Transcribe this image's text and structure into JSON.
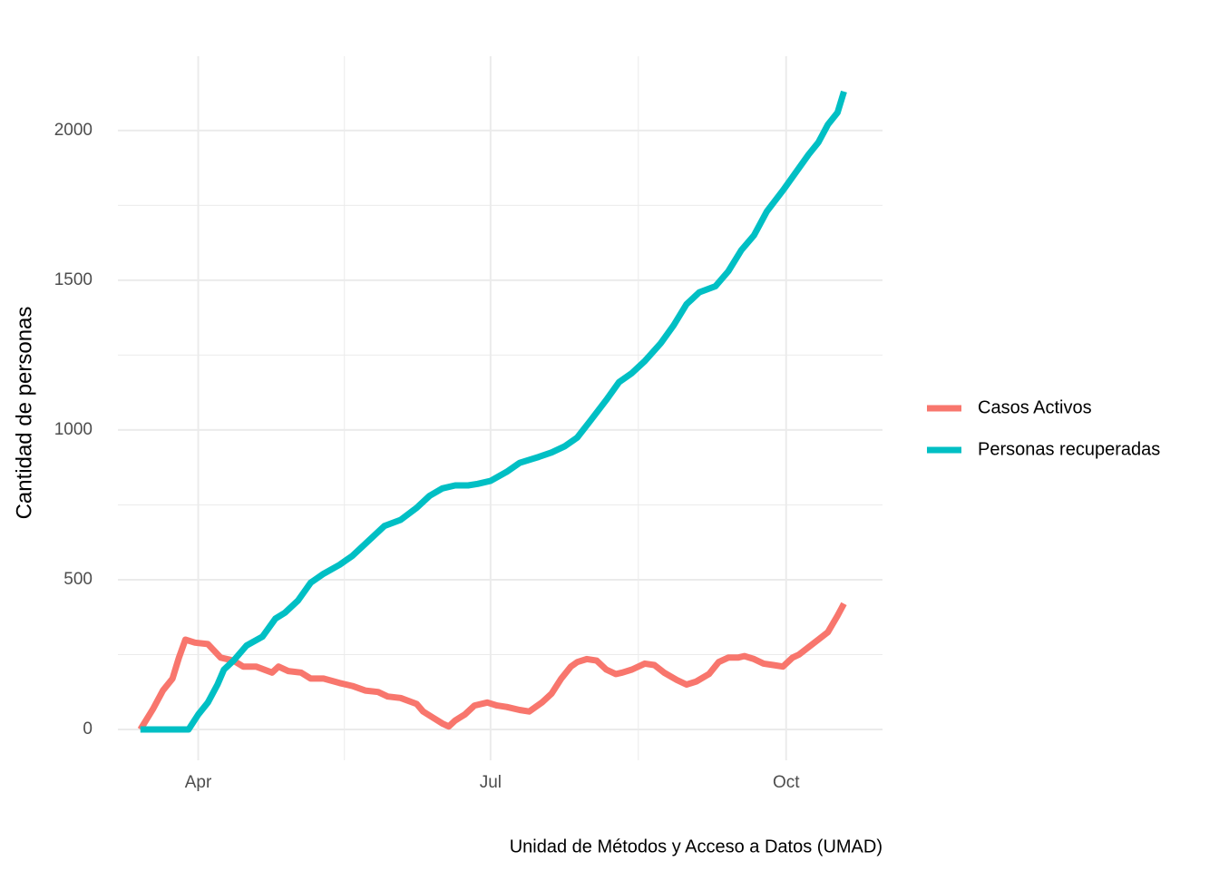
{
  "chart_data": {
    "type": "line",
    "y_label": "Cantidad de personas",
    "caption": "Unidad de Métodos y Acceso a Datos (UMAD)",
    "grid": true,
    "legend": "right",
    "xlim": [
      67,
      305
    ],
    "xticks": [
      {
        "value": 92,
        "label": "Apr"
      },
      {
        "value": 183,
        "label": "Jul"
      },
      {
        "value": 275,
        "label": "Oct"
      }
    ],
    "ylim": [
      -103,
      2248
    ],
    "yticks": [
      0,
      500,
      1000,
      1500,
      2000
    ],
    "series": [
      {
        "name": "Casos Activos",
        "color": "#f8766d",
        "x": [
          74,
          78,
          81,
          84,
          86,
          88,
          91,
          95,
          99,
          103,
          106,
          110,
          115,
          117,
          120,
          124,
          127,
          131,
          136,
          140,
          144,
          148,
          151,
          155,
          160,
          162,
          165,
          168,
          170,
          172,
          175,
          178,
          182,
          185,
          188,
          192,
          195,
          199,
          202,
          205,
          208,
          210,
          213,
          216,
          219,
          222,
          224,
          227,
          231,
          234,
          237,
          241,
          244,
          247,
          251,
          254,
          257,
          260,
          262,
          265,
          268,
          271,
          274,
          277,
          279,
          282,
          285,
          288,
          291,
          293
        ],
        "values": [
          0,
          70,
          130,
          170,
          240,
          300,
          290,
          285,
          240,
          230,
          210,
          210,
          190,
          210,
          195,
          190,
          170,
          170,
          155,
          145,
          130,
          125,
          110,
          105,
          85,
          60,
          40,
          20,
          10,
          30,
          50,
          80,
          90,
          80,
          75,
          65,
          60,
          90,
          120,
          170,
          210,
          225,
          235,
          230,
          200,
          185,
          190,
          200,
          220,
          215,
          190,
          165,
          150,
          160,
          185,
          225,
          240,
          240,
          245,
          235,
          220,
          215,
          210,
          240,
          250,
          275,
          300,
          325,
          380,
          420
        ]
      },
      {
        "name": "Personas recuperadas",
        "color": "#00bfc4",
        "x": [
          74,
          89,
          92,
          95,
          98,
          100,
          103,
          107,
          112,
          116,
          119,
          123,
          127,
          131,
          136,
          140,
          144,
          150,
          155,
          160,
          164,
          168,
          172,
          176,
          179,
          183,
          188,
          192,
          198,
          202,
          206,
          210,
          214,
          219,
          223,
          227,
          231,
          236,
          240,
          244,
          248,
          253,
          257,
          261,
          265,
          269,
          274,
          278,
          282,
          285,
          288,
          291,
          293
        ],
        "values": [
          0,
          0,
          50,
          90,
          150,
          200,
          230,
          280,
          310,
          370,
          390,
          430,
          490,
          520,
          550,
          580,
          620,
          680,
          700,
          740,
          780,
          805,
          815,
          815,
          820,
          830,
          860,
          890,
          910,
          925,
          945,
          975,
          1030,
          1100,
          1160,
          1190,
          1230,
          1290,
          1350,
          1420,
          1460,
          1480,
          1530,
          1600,
          1650,
          1730,
          1800,
          1860,
          1920,
          1960,
          2020,
          2060,
          2130
        ]
      }
    ]
  }
}
